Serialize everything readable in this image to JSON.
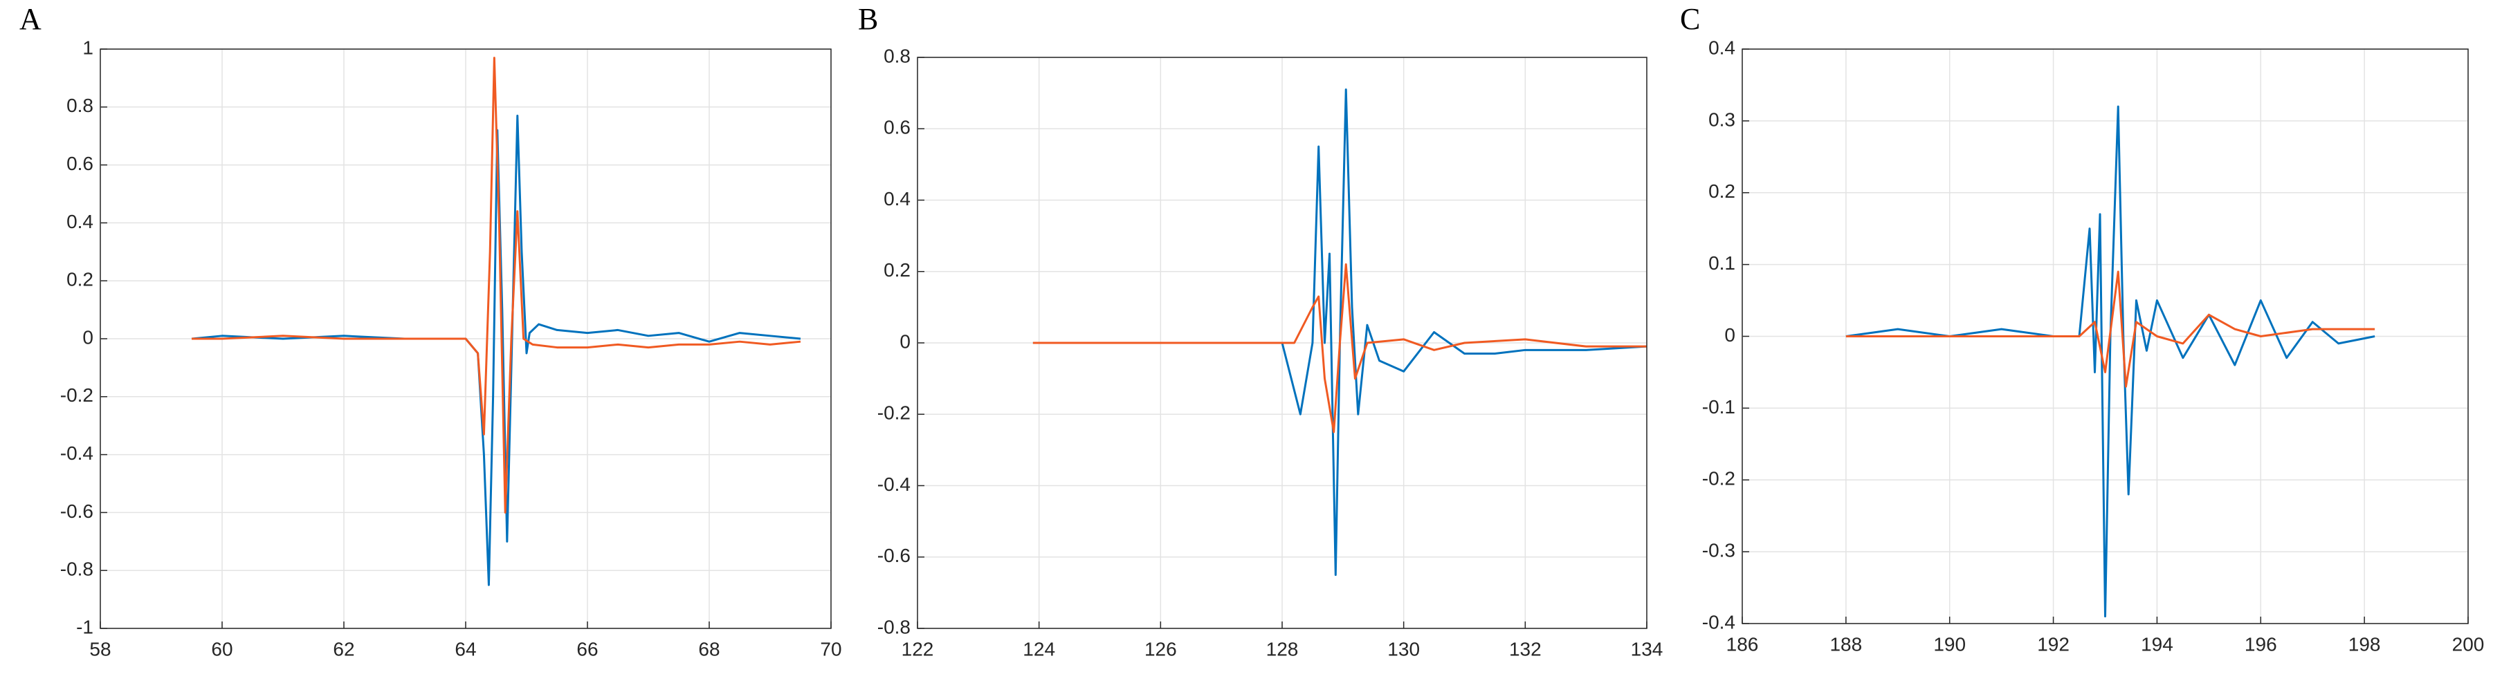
{
  "chart_data": [
    {
      "type": "line",
      "title": "A",
      "xlim": [
        58,
        70
      ],
      "xticks": [
        58,
        60,
        62,
        64,
        66,
        68,
        70
      ],
      "ylim": [
        -1,
        1
      ],
      "yticks": [
        -1,
        -0.8,
        -0.6,
        -0.4,
        -0.2,
        0,
        0.2,
        0.4,
        0.6,
        0.8,
        1
      ],
      "grid": true,
      "series": [
        {
          "color": "#0072bd",
          "x": [
            59.5,
            60,
            61,
            62,
            63,
            64,
            64.2,
            64.3,
            64.38,
            64.45,
            64.52,
            64.6,
            64.68,
            64.75,
            64.85,
            64.92,
            65,
            65.05,
            65.2,
            65.5,
            66,
            66.5,
            67,
            67.5,
            68,
            68.5,
            69,
            69.5
          ],
          "values": [
            0,
            0.01,
            0,
            0.01,
            0,
            0,
            -0.05,
            -0.4,
            -0.85,
            -0.2,
            0.72,
            0.1,
            -0.7,
            -0.1,
            0.77,
            0.3,
            -0.05,
            0.02,
            0.05,
            0.03,
            0.02,
            0.03,
            0.01,
            0.02,
            -0.01,
            0.02,
            0.01,
            0
          ]
        },
        {
          "color": "#f05a22",
          "x": [
            59.5,
            60,
            61,
            62,
            63,
            64,
            64.2,
            64.3,
            64.4,
            64.47,
            64.55,
            64.65,
            64.75,
            64.85,
            64.95,
            65.1,
            65.5,
            66,
            66.5,
            67,
            67.5,
            68,
            68.5,
            69,
            69.5
          ],
          "values": [
            0,
            0,
            0.01,
            0,
            0,
            0,
            -0.05,
            -0.33,
            0.3,
            0.97,
            0.4,
            -0.6,
            0,
            0.44,
            0,
            -0.02,
            -0.03,
            -0.03,
            -0.02,
            -0.03,
            -0.02,
            -0.02,
            -0.01,
            -0.02,
            -0.01
          ]
        }
      ]
    },
    {
      "type": "line",
      "title": "B",
      "xlim": [
        122,
        134
      ],
      "xticks": [
        122,
        124,
        126,
        128,
        130,
        132,
        134
      ],
      "ylim": [
        -0.8,
        0.8
      ],
      "yticks": [
        -0.8,
        -0.6,
        -0.4,
        -0.2,
        0,
        0.2,
        0.4,
        0.6,
        0.8
      ],
      "grid": true,
      "series": [
        {
          "color": "#0072bd",
          "x": [
            123.9,
            125,
            126,
            127,
            128,
            128.3,
            128.5,
            128.6,
            128.7,
            128.78,
            128.88,
            128.95,
            129.05,
            129.15,
            129.25,
            129.4,
            129.6,
            130,
            130.5,
            131,
            131.5,
            132,
            133,
            134
          ],
          "values": [
            0,
            0,
            0,
            0,
            0,
            -0.2,
            0,
            0.55,
            0,
            0.25,
            -0.65,
            0,
            0.71,
            0.1,
            -0.2,
            0.05,
            -0.05,
            -0.08,
            0.03,
            -0.03,
            -0.03,
            -0.02,
            -0.02,
            -0.01
          ]
        },
        {
          "color": "#f05a22",
          "x": [
            123.9,
            125,
            126,
            127,
            128.2,
            128.5,
            128.6,
            128.7,
            128.85,
            128.95,
            129.05,
            129.2,
            129.4,
            130,
            130.5,
            131,
            132,
            133,
            134
          ],
          "values": [
            0,
            0,
            0,
            0,
            0,
            0.1,
            0.13,
            -0.1,
            -0.25,
            0,
            0.22,
            -0.1,
            0,
            0.01,
            -0.02,
            0,
            0.01,
            -0.01,
            -0.01
          ]
        }
      ]
    },
    {
      "type": "line",
      "title": "C",
      "xlim": [
        186,
        200
      ],
      "xticks": [
        186,
        188,
        190,
        192,
        194,
        196,
        198,
        200
      ],
      "ylim": [
        -0.4,
        0.4
      ],
      "yticks": [
        -0.4,
        -0.3,
        -0.2,
        -0.1,
        0,
        0.1,
        0.2,
        0.3,
        0.4
      ],
      "grid": true,
      "series": [
        {
          "color": "#0072bd",
          "x": [
            188,
            189,
            190,
            191,
            192,
            192.5,
            192.7,
            192.8,
            192.9,
            193,
            193.1,
            193.25,
            193.35,
            193.45,
            193.6,
            193.8,
            194,
            194.5,
            195,
            195.5,
            196,
            196.5,
            197,
            197.5,
            198.2
          ],
          "values": [
            0,
            0.01,
            0,
            0.01,
            0,
            0,
            0.15,
            -0.05,
            0.17,
            -0.39,
            0,
            0.32,
            0,
            -0.22,
            0.05,
            -0.02,
            0.05,
            -0.03,
            0.03,
            -0.04,
            0.05,
            -0.03,
            0.02,
            -0.01,
            0
          ]
        },
        {
          "color": "#f05a22",
          "x": [
            188,
            189,
            190,
            191,
            192,
            192.5,
            192.8,
            193,
            193.25,
            193.4,
            193.6,
            194,
            194.5,
            195,
            195.5,
            196,
            197,
            198.2
          ],
          "values": [
            0,
            0,
            0,
            0,
            0,
            0,
            0.02,
            -0.05,
            0.09,
            -0.07,
            0.02,
            0,
            -0.01,
            0.03,
            0.01,
            0,
            0.01,
            0.01
          ]
        }
      ]
    }
  ]
}
